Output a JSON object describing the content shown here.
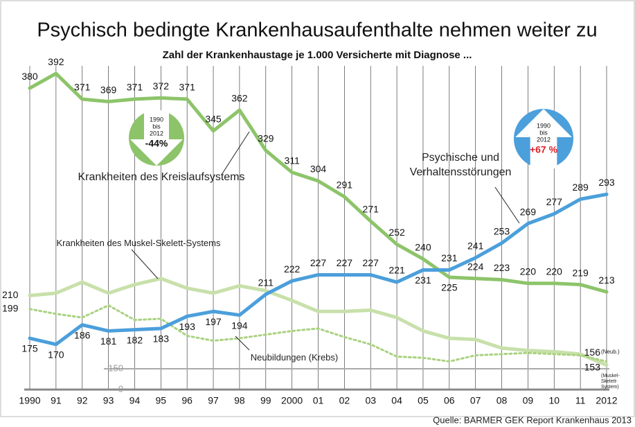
{
  "chart_data": {
    "type": "line",
    "title": "Psychisch bedingte Krankenhausaufenthalte nehmen weiter zu",
    "subtitle": "Zahl der Krankenhaustage je 1.000 Versicherte mit Diagnose ...",
    "categories": [
      "1990",
      "91",
      "92",
      "93",
      "94",
      "95",
      "96",
      "97",
      "98",
      "99",
      "2000",
      "01",
      "02",
      "03",
      "04",
      "05",
      "06",
      "07",
      "08",
      "09",
      "10",
      "11",
      "2012"
    ],
    "ylim": [
      150,
      400
    ],
    "yticks": [
      150
    ],
    "y_break_tick": 0,
    "grid": true,
    "series": [
      {
        "name": "Krankheiten des Kreislaufsystems",
        "color": "#8dc46a",
        "style": "solid",
        "data_labels": "all",
        "values": [
          380,
          392,
          371,
          369,
          371,
          372,
          371,
          345,
          362,
          329,
          311,
          304,
          291,
          271,
          252,
          240,
          225,
          224,
          223,
          220,
          220,
          219,
          213
        ]
      },
      {
        "name": "Psychische und Verhaltensstörungen",
        "color": "#4b9fdb",
        "style": "solid",
        "data_labels": "all",
        "values": [
          175,
          170,
          186,
          181,
          182,
          183,
          193,
          197,
          194,
          211,
          222,
          227,
          227,
          227,
          221,
          231,
          231,
          241,
          253,
          269,
          277,
          289,
          293
        ]
      },
      {
        "name": "Krankheiten des Muskel-Skelett-Systems",
        "color": "#c8e0aa",
        "style": "solid",
        "data_labels": "ends",
        "end_note": "(Muskel-Skelett-System)",
        "values": [
          210,
          212,
          221,
          212,
          219,
          224,
          216,
          212,
          218,
          214,
          206,
          197,
          197,
          198,
          192,
          181,
          175,
          174,
          167,
          165,
          164,
          162,
          153
        ]
      },
      {
        "name": "Neubildungen (Krebs)",
        "color": "#a9d27f",
        "style": "dotted",
        "data_labels": "ends",
        "end_note": "(Neub.)",
        "values": [
          199,
          195,
          192,
          202,
          190,
          191,
          177,
          173,
          175,
          178,
          181,
          183,
          176,
          170,
          160,
          159,
          156,
          161,
          162,
          163,
          162,
          161,
          156
        ]
      }
    ],
    "badges": [
      {
        "from": "1990",
        "connector": "bis",
        "to": "2012",
        "change": "-44%",
        "color": "#8dc46a"
      },
      {
        "from": "1990",
        "connector": "bis",
        "to": "2012",
        "change": "+67 %",
        "color": "#4b9fdb"
      }
    ],
    "source": "Quelle: BARMER GEK Report Krankenhaus 2013"
  }
}
